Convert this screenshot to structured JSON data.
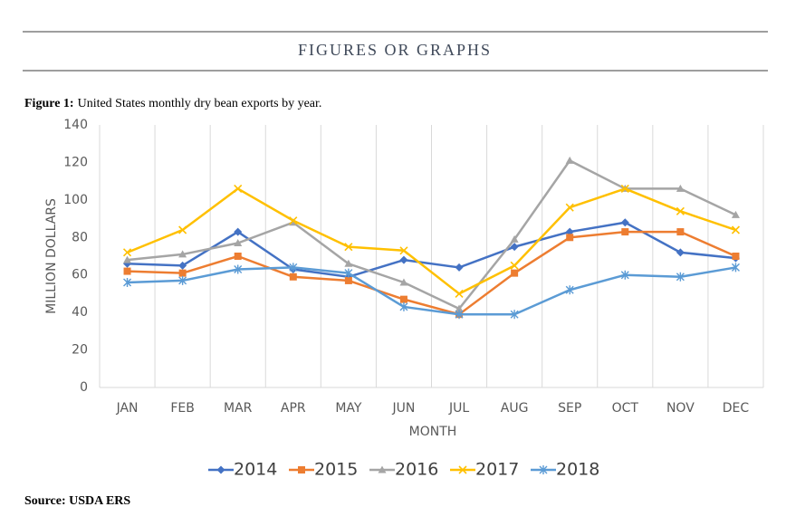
{
  "header": {
    "title": "FIGURES OR GRAPHS"
  },
  "figure": {
    "label": "Figure 1:",
    "caption": "United States monthly dry bean exports by year."
  },
  "chart_data": {
    "type": "line",
    "x_label": "MONTH",
    "y_label": "MILLION DOLLARS",
    "categories": [
      "JAN",
      "FEB",
      "MAR",
      "APR",
      "MAY",
      "JUN",
      "JUL",
      "AUG",
      "SEP",
      "OCT",
      "NOV",
      "DEC"
    ],
    "ylim": [
      0,
      140
    ],
    "yticks": [
      0,
      20,
      40,
      60,
      80,
      100,
      120,
      140
    ],
    "series": [
      {
        "name": "2014",
        "color": "#4472c4",
        "marker": "diamond",
        "values": [
          66,
          65,
          83,
          63,
          59,
          68,
          64,
          75,
          83,
          88,
          72,
          69
        ]
      },
      {
        "name": "2015",
        "color": "#ed7d31",
        "marker": "square",
        "values": [
          62,
          61,
          70,
          59,
          57,
          47,
          39,
          61,
          80,
          83,
          83,
          70
        ]
      },
      {
        "name": "2016",
        "color": "#a5a5a5",
        "marker": "triangle",
        "values": [
          68,
          71,
          77,
          88,
          66,
          56,
          42,
          79,
          121,
          106,
          106,
          92
        ]
      },
      {
        "name": "2017",
        "color": "#ffc000",
        "marker": "x",
        "values": [
          72,
          84,
          106,
          89,
          75,
          73,
          50,
          65,
          96,
          106,
          94,
          84
        ]
      },
      {
        "name": "2018",
        "color": "#5b9bd5",
        "marker": "star",
        "values": [
          56,
          57,
          63,
          64,
          61,
          43,
          39,
          39,
          52,
          60,
          59,
          64
        ]
      }
    ]
  },
  "source": "Source: USDA ERS"
}
